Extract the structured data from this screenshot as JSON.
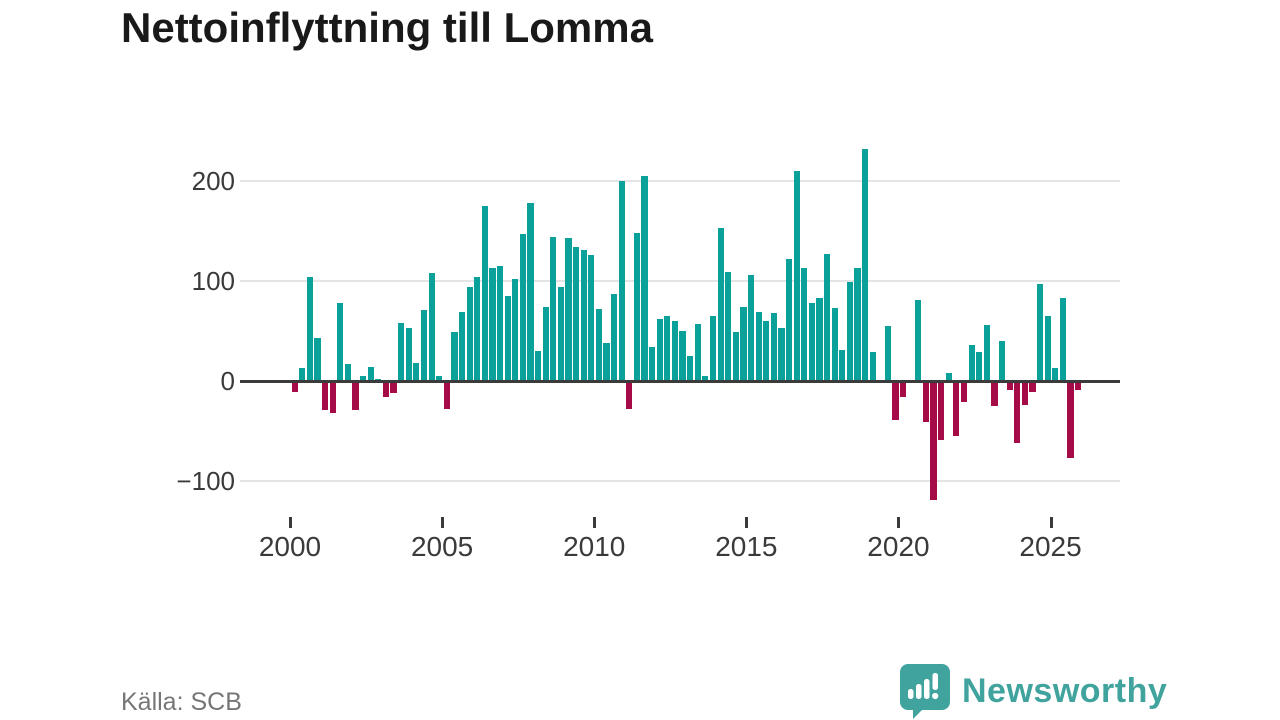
{
  "title": "Nettoinflyttning till Lomma",
  "source": "Källa: SCB",
  "logo": {
    "text": "Newsworthy"
  },
  "colors": {
    "positive_bar": "#0aa19a",
    "negative_bar": "#a50c47",
    "zero_line": "#3b3b3b",
    "gridline": "#e4e4e4",
    "axis_text": "#3a3a3a",
    "title_text": "#191919",
    "source_text": "#767676",
    "logo_teal": "#41a39d"
  },
  "chart_data": {
    "type": "bar",
    "title": "Nettoinflyttning till Lomma",
    "xlabel": "",
    "ylabel": "",
    "period": "quarterly",
    "x_start": "2000-Q1",
    "x_end": "2025-Q4",
    "start_year": 2000,
    "ylim": [
      -130,
      245
    ],
    "grid": "horizontal",
    "y_ticks": [
      200,
      100,
      0,
      -100
    ],
    "y_tick_labels": [
      "200",
      "100",
      "0",
      "−100"
    ],
    "x_tick_years": [
      2000,
      2005,
      2010,
      2015,
      2020,
      2025
    ],
    "x_tick_labels": [
      "2000",
      "2005",
      "2010",
      "2015",
      "2020",
      "2025"
    ],
    "values": [
      -11,
      13,
      104,
      43,
      -29,
      -32,
      78,
      17,
      -29,
      5,
      14,
      2,
      -16,
      -12,
      58,
      53,
      18,
      71,
      108,
      5,
      -28,
      49,
      69,
      94,
      104,
      175,
      113,
      115,
      85,
      102,
      147,
      178,
      30,
      74,
      144,
      94,
      143,
      134,
      131,
      126,
      72,
      38,
      87,
      200,
      -28,
      148,
      205,
      34,
      62,
      65,
      60,
      50,
      25,
      57,
      5,
      65,
      153,
      109,
      49,
      74,
      106,
      69,
      60,
      68,
      53,
      122,
      210,
      113,
      78,
      83,
      127,
      73,
      31,
      99,
      113,
      232,
      29,
      0,
      55,
      -39,
      -16,
      0,
      81,
      -41,
      -119,
      -59,
      8,
      -55,
      -21,
      36,
      29,
      56,
      -25,
      40,
      -9,
      -62,
      -24,
      -11,
      97,
      65,
      13,
      83,
      -77,
      -9
    ]
  }
}
